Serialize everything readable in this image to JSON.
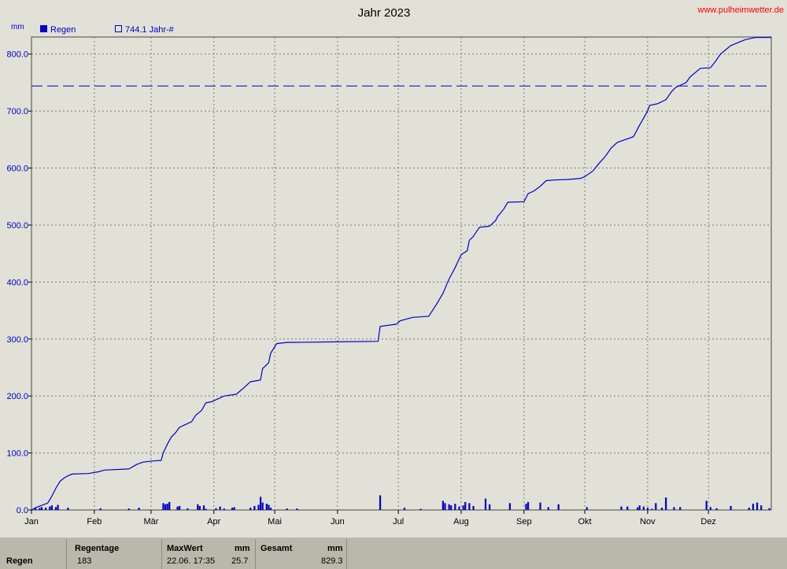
{
  "header": {
    "title": "Jahr 2023",
    "site": "www.pulheimwetter.de",
    "unit": "mm"
  },
  "legend": [
    {
      "label": "Regen",
      "filled": true
    },
    {
      "label": "744.1 Jahr-#",
      "filled": false
    }
  ],
  "colors": {
    "background": "#e1e1d7",
    "series": "#0000cc",
    "grid": "#7a7a70",
    "site": "#ff0000",
    "footer": "#b9b9ab"
  },
  "chart_data": {
    "type": "line",
    "title": "Jahr 2023",
    "ylabel": "mm",
    "ylim": [
      0,
      830
    ],
    "xlim": [
      0,
      365
    ],
    "yticks": [
      "0.0",
      "100.0",
      "200.0",
      "300.0",
      "400.0",
      "500.0",
      "600.0",
      "700.0",
      "800.0"
    ],
    "ytick_values": [
      0,
      100,
      200,
      300,
      400,
      500,
      600,
      700,
      800
    ],
    "month_labels": [
      "Jan",
      "Feb",
      "Mär",
      "Apr",
      "Mai",
      "Jun",
      "Jul",
      "Aug",
      "Sep",
      "Okt",
      "Nov",
      "Dez"
    ],
    "month_starts": [
      0,
      31,
      59,
      90,
      120,
      151,
      181,
      212,
      243,
      273,
      304,
      334
    ],
    "grid": true,
    "legend_position": "top-left",
    "reference_line": {
      "name": "744.1 Jahr-#",
      "value": 744.1,
      "style": "dashed"
    },
    "cumulative_series": {
      "name": "Regen",
      "points": [
        [
          0,
          0
        ],
        [
          2,
          4
        ],
        [
          5,
          8
        ],
        [
          8,
          12
        ],
        [
          10,
          24
        ],
        [
          12,
          38
        ],
        [
          14,
          50
        ],
        [
          16,
          56
        ],
        [
          18,
          60
        ],
        [
          20,
          63
        ],
        [
          28,
          64
        ],
        [
          33,
          67
        ],
        [
          36,
          70
        ],
        [
          48,
          72
        ],
        [
          52,
          80
        ],
        [
          55,
          84
        ],
        [
          60,
          86
        ],
        [
          64,
          87
        ],
        [
          65,
          100
        ],
        [
          67,
          115
        ],
        [
          69,
          128
        ],
        [
          71,
          135
        ],
        [
          73,
          145
        ],
        [
          76,
          150
        ],
        [
          79,
          155
        ],
        [
          81,
          166
        ],
        [
          84,
          175
        ],
        [
          86,
          188
        ],
        [
          89,
          190
        ],
        [
          92,
          195
        ],
        [
          95,
          200
        ],
        [
          101,
          203
        ],
        [
          105,
          215
        ],
        [
          108,
          225
        ],
        [
          113,
          228
        ],
        [
          114,
          248
        ],
        [
          117,
          258
        ],
        [
          118,
          275
        ],
        [
          121,
          292
        ],
        [
          126,
          294
        ],
        [
          150,
          295
        ],
        [
          171,
          296
        ],
        [
          172,
          322
        ],
        [
          180,
          326
        ],
        [
          182,
          332
        ],
        [
          188,
          338
        ],
        [
          196,
          340
        ],
        [
          200,
          362
        ],
        [
          203,
          380
        ],
        [
          206,
          405
        ],
        [
          209,
          425
        ],
        [
          212,
          448
        ],
        [
          215,
          455
        ],
        [
          216,
          473
        ],
        [
          218,
          480
        ],
        [
          221,
          496
        ],
        [
          226,
          498
        ],
        [
          229,
          508
        ],
        [
          230,
          515
        ],
        [
          233,
          528
        ],
        [
          235,
          540
        ],
        [
          243,
          541
        ],
        [
          245,
          555
        ],
        [
          248,
          560
        ],
        [
          251,
          568
        ],
        [
          254,
          578
        ],
        [
          258,
          579
        ],
        [
          265,
          580
        ],
        [
          271,
          582
        ],
        [
          273,
          585
        ],
        [
          277,
          595
        ],
        [
          280,
          608
        ],
        [
          283,
          620
        ],
        [
          286,
          635
        ],
        [
          289,
          645
        ],
        [
          293,
          650
        ],
        [
          297,
          655
        ],
        [
          300,
          675
        ],
        [
          304,
          700
        ],
        [
          305,
          710
        ],
        [
          309,
          713
        ],
        [
          313,
          720
        ],
        [
          316,
          735
        ],
        [
          318,
          742
        ],
        [
          320,
          745
        ],
        [
          323,
          750
        ],
        [
          325,
          760
        ],
        [
          330,
          775
        ],
        [
          335,
          776
        ],
        [
          337,
          785
        ],
        [
          340,
          800
        ],
        [
          345,
          815
        ],
        [
          352,
          825
        ],
        [
          357,
          829
        ],
        [
          365,
          829.3
        ]
      ]
    },
    "daily_series": {
      "name": "Regen",
      "days": [
        2,
        4,
        5,
        7,
        9,
        10,
        12,
        13,
        18,
        34,
        48,
        53,
        65,
        66,
        67,
        68,
        72,
        73,
        77,
        82,
        83,
        85,
        86,
        91,
        93,
        95,
        99,
        100,
        108,
        110,
        112,
        113,
        114,
        116,
        117,
        118,
        126,
        131,
        172,
        184,
        192,
        203,
        204,
        206,
        207,
        209,
        211,
        213,
        214,
        216,
        218,
        224,
        226,
        236,
        244,
        245,
        251,
        255,
        260,
        274,
        291,
        294,
        299,
        300,
        302,
        304,
        306,
        308,
        311,
        313,
        317,
        320,
        333,
        335,
        338,
        345,
        354,
        356,
        358,
        360,
        364
      ],
      "values": [
        3,
        3.5,
        5,
        4.2,
        6,
        8,
        5,
        9,
        4,
        3,
        2.5,
        4,
        12,
        10,
        11,
        14,
        6,
        7,
        3,
        10,
        7,
        8,
        2,
        3,
        6,
        2.5,
        4,
        5,
        4,
        7,
        9,
        23,
        13,
        11,
        9,
        4,
        2.5,
        2.5,
        25.7,
        4,
        2,
        16,
        12,
        10,
        8,
        11,
        6,
        8,
        14,
        12,
        7,
        20,
        10,
        12,
        11,
        14,
        13,
        5,
        10,
        5,
        6,
        6,
        4.5,
        8,
        6,
        4,
        2,
        12,
        4,
        22,
        5,
        5,
        16,
        5,
        3,
        7,
        4,
        11,
        13,
        8,
        3
      ]
    }
  },
  "footer": {
    "row_label": "Regen",
    "regentage_label": "Regentage",
    "regentage_value": "183",
    "maxwert_label": "MaxWert",
    "maxwert_unit": "mm",
    "maxwert_date": "22.06.  17:35",
    "maxwert_value": "25.7",
    "gesamt_label": "Gesamt",
    "gesamt_unit": "mm",
    "gesamt_value": "829.3"
  }
}
